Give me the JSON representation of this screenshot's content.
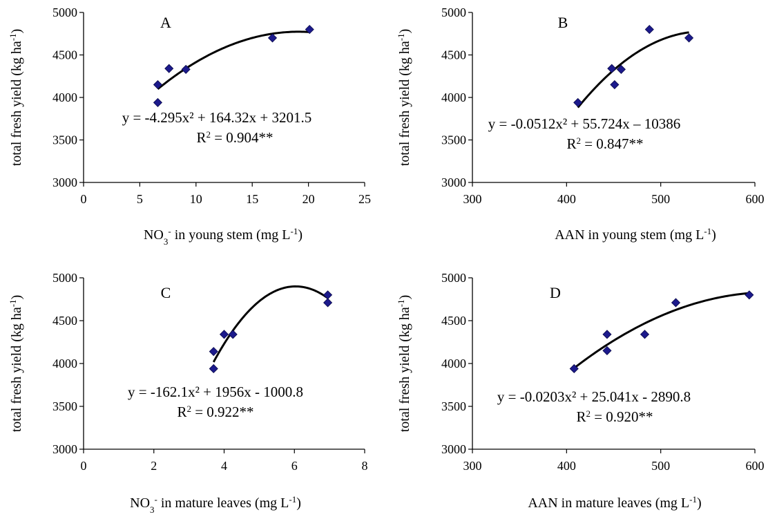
{
  "chart_data": [
    {
      "type": "scatter",
      "panel_label": "A",
      "xlabel": {
        "pre": "NO",
        "sub": "3",
        "sup1": "-",
        "mid": " in young stem (mg L",
        "sup2": "-1",
        "post": ")"
      },
      "ylabel": {
        "pre": "total fresh yield (kg ha",
        "sup": "-1",
        "post": ")"
      },
      "xlim": [
        0,
        25
      ],
      "ylim": [
        3000,
        5000
      ],
      "xticks": [
        "0",
        "5",
        "10",
        "15",
        "20",
        "25"
      ],
      "yticks": [
        "3000",
        "3500",
        "4000",
        "4500",
        "5000"
      ],
      "x": [
        6.6,
        6.6,
        7.6,
        9.1,
        16.8,
        20.1
      ],
      "y": [
        4150,
        3940,
        4340,
        4330,
        4700,
        4800
      ],
      "equation": "y = -4.295x² + 164.32x + 3201.5",
      "r2": {
        "pre": "R",
        "sup": "2",
        "post": " = 0.904**"
      },
      "trend": {
        "a": -4.295,
        "b": 164.32,
        "c": 3201.5,
        "xmin": 6.6,
        "xmax": 20.1
      }
    },
    {
      "type": "scatter",
      "panel_label": "B",
      "xlabel": {
        "pre": "AAN in young stem (mg L",
        "sup": "-1",
        "post": ")"
      },
      "ylabel": {
        "pre": "total fresh yield (kg ha",
        "sup": "-1",
        "post": ")"
      },
      "xlim": [
        300,
        600
      ],
      "ylim": [
        3000,
        5000
      ],
      "xticks": [
        "300",
        "400",
        "500",
        "600"
      ],
      "yticks": [
        "3000",
        "3500",
        "4000",
        "4500",
        "5000"
      ],
      "x": [
        412,
        448,
        451,
        458,
        488,
        530
      ],
      "y": [
        3940,
        4340,
        4150,
        4330,
        4800,
        4700
      ],
      "equation": "y = -0.0512x² + 55.724x – 10386",
      "r2": {
        "pre": "R",
        "sup": "2",
        "post": " = 0.847**"
      },
      "trend": {
        "a": -0.0512,
        "b": 55.724,
        "c": -10386,
        "xmin": 412,
        "xmax": 530
      }
    },
    {
      "type": "scatter",
      "panel_label": "C",
      "xlabel": {
        "pre": "NO",
        "sub": "3",
        "sup1": "-",
        "mid": " in mature leaves (mg L",
        "sup2": "-1",
        "post": ")"
      },
      "ylabel": {
        "pre": "total fresh yield (kg ha",
        "sup": "-1",
        "post": ")"
      },
      "xlim": [
        0,
        8
      ],
      "ylim": [
        3000,
        5000
      ],
      "xticks": [
        "0",
        "2",
        "4",
        "6",
        "8"
      ],
      "yticks": [
        "3000",
        "3500",
        "4000",
        "4500",
        "5000"
      ],
      "x": [
        3.7,
        3.7,
        4.0,
        4.25,
        6.95,
        6.95
      ],
      "y": [
        4140,
        3940,
        4340,
        4340,
        4800,
        4710
      ],
      "equation": "y = -162.1x² + 1956x - 1000.8",
      "r2": {
        "pre": "R",
        "sup": "2",
        "post": " = 0.922**"
      },
      "trend": {
        "a": -162.1,
        "b": 1956,
        "c": -1000.8,
        "xmin": 3.7,
        "xmax": 6.95
      }
    },
    {
      "type": "scatter",
      "panel_label": "D",
      "xlabel": {
        "pre": "AAN in mature leaves (mg L",
        "sup": "-1",
        "post": ")"
      },
      "ylabel": {
        "pre": "total fresh yield (kg ha",
        "sup": "-1",
        "post": ")"
      },
      "xlim": [
        300,
        600
      ],
      "ylim": [
        3000,
        5000
      ],
      "xticks": [
        "300",
        "400",
        "500",
        "600"
      ],
      "yticks": [
        "3000",
        "3500",
        "4000",
        "4500",
        "5000"
      ],
      "x": [
        408,
        443,
        443,
        483,
        516,
        594
      ],
      "y": [
        3940,
        4340,
        4150,
        4340,
        4710,
        4800
      ],
      "equation": "y = -0.0203x² + 25.041x - 2890.8",
      "r2": {
        "pre": "R",
        "sup": "2",
        "post": " = 0.920**"
      },
      "trend": {
        "a": -0.0203,
        "b": 25.041,
        "c": -2890.8,
        "xmin": 408,
        "xmax": 594
      }
    }
  ],
  "colors": {
    "marker": "#1c1a8c",
    "marker_edge": "#0a0a4a",
    "axis": "#000000",
    "trend": "#000000"
  }
}
